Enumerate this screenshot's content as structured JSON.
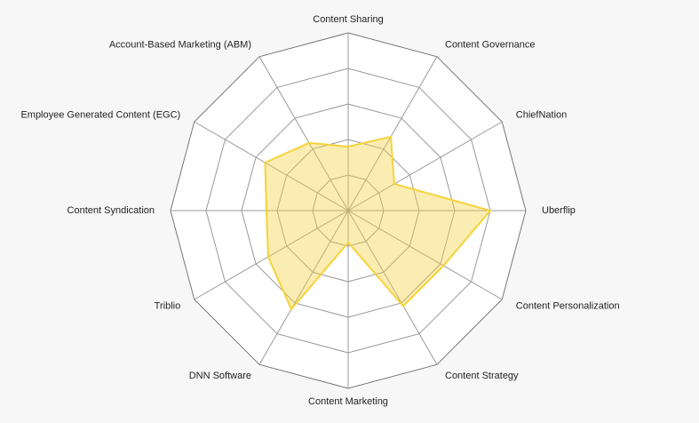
{
  "chart_data": {
    "type": "radar",
    "categories": [
      "Content Sharing",
      "Content Governance",
      "ChiefNation",
      "Uberflip",
      "Content Personalization",
      "Content Strategy",
      "Content Marketing",
      "DNN Software",
      "Triblio",
      "Content Syndication",
      "Employee Generated Content (EGC)",
      "Account-Based Marketing (ABM)"
    ],
    "values": [
      1.8,
      2.4,
      1.5,
      4.0,
      3.1,
      3.1,
      0.9,
      3.2,
      2.6,
      2.3,
      2.7,
      2.2
    ],
    "color": "#f5d33c",
    "rlim": [
      0,
      5
    ],
    "rticks": [
      1,
      2,
      3,
      4,
      5
    ],
    "grid": true
  }
}
